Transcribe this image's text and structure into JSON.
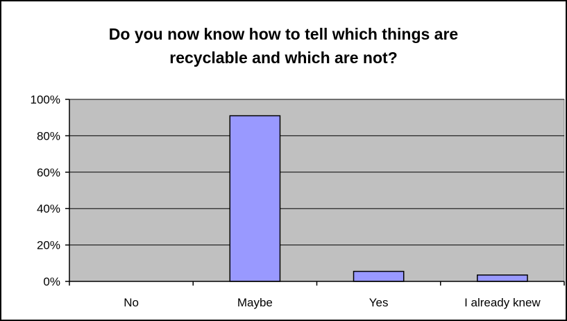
{
  "chart_data": {
    "type": "bar",
    "title_lines": [
      "Do you now know how to tell which things are",
      "recyclable and which are not?"
    ],
    "categories": [
      "No",
      "Maybe",
      "Yes",
      "I already knew"
    ],
    "values": [
      0,
      91,
      5.5,
      3.5
    ],
    "ylim": [
      0,
      100
    ],
    "yticks": [
      0,
      20,
      40,
      60,
      80,
      100
    ],
    "ytick_labels": [
      "0%",
      "20%",
      "40%",
      "60%",
      "80%",
      "100%"
    ],
    "xlabel": "",
    "ylabel": "",
    "grid": true,
    "legend": "none",
    "colors": {
      "plot_background": "#c0c0c0",
      "bar_fill": "#9999ff",
      "bar_stroke": "#000000",
      "gridline": "#000000"
    }
  }
}
